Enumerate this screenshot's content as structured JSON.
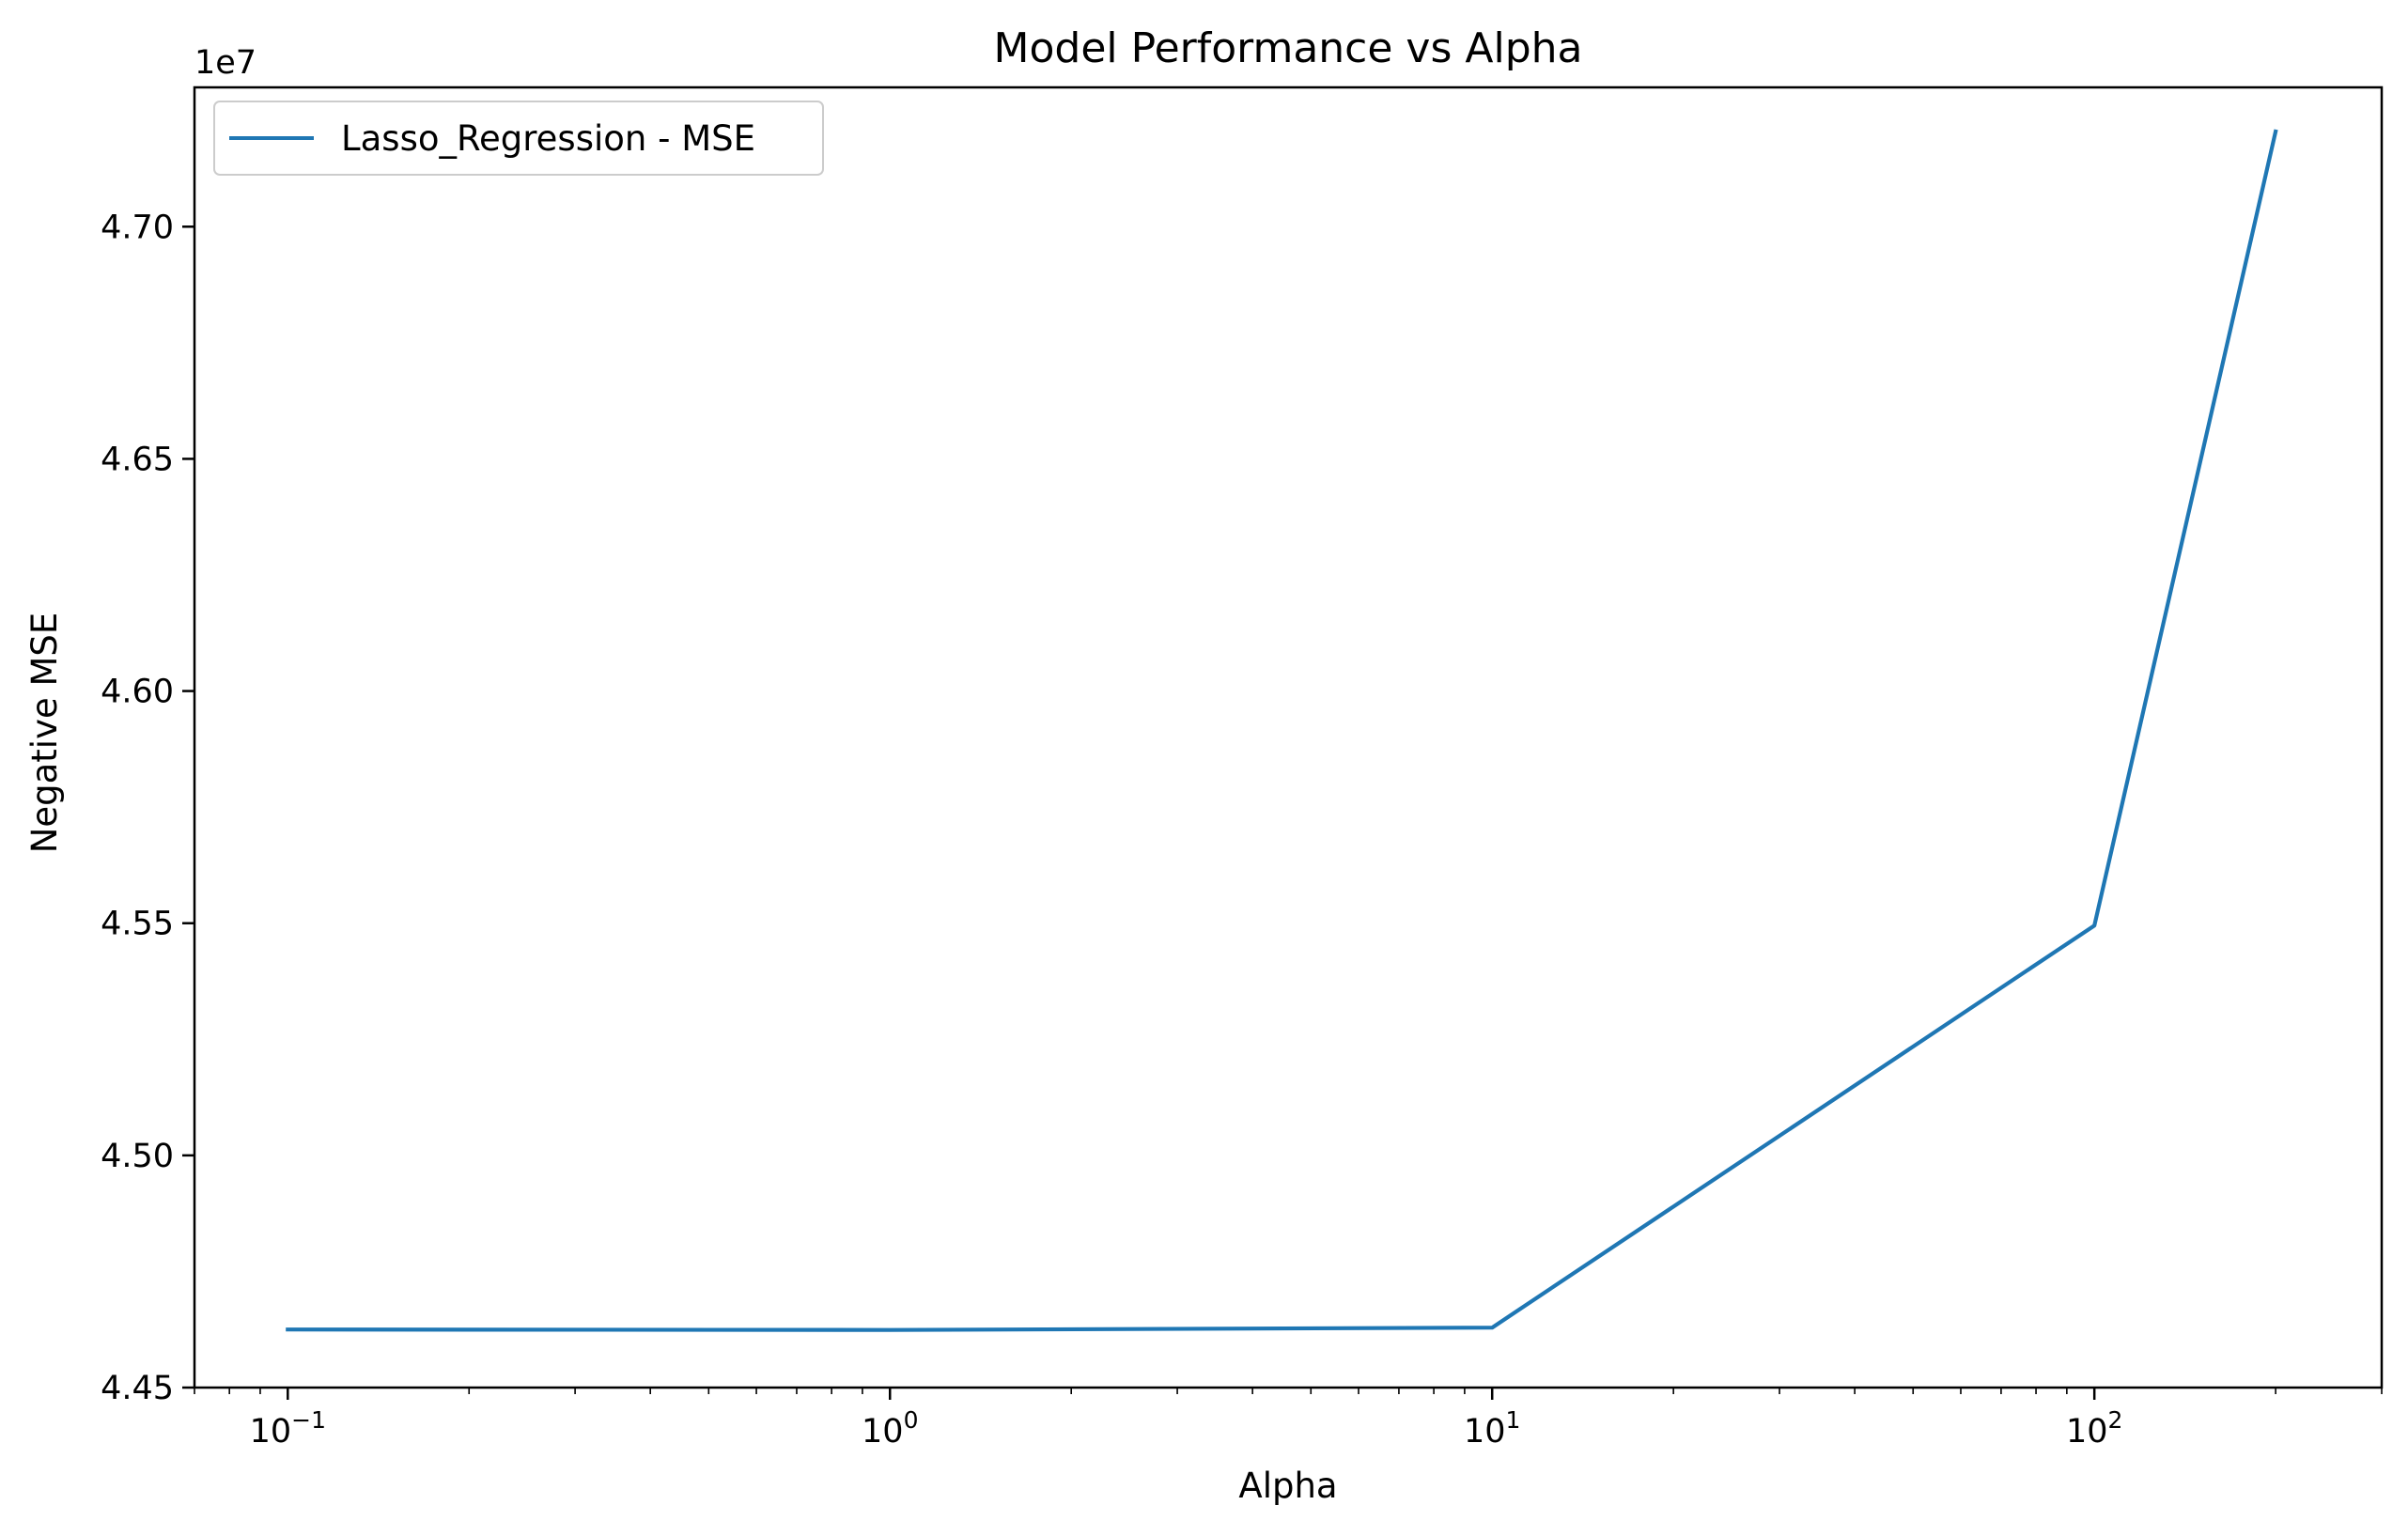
{
  "chart_data": {
    "type": "line",
    "title": "Model Performance vs Alpha",
    "xlabel": "Alpha",
    "ylabel": "Negative MSE",
    "xscale": "log",
    "xlim": [
      0.07,
      300
    ],
    "ylim": [
      44500000,
      47300000
    ],
    "y_offset_label": "1e7",
    "x_ticks": [
      {
        "value": 0.1,
        "base": "10",
        "exp": "−1"
      },
      {
        "value": 1,
        "base": "10",
        "exp": "0"
      },
      {
        "value": 10,
        "base": "10",
        "exp": "1"
      },
      {
        "value": 100,
        "base": "10",
        "exp": "2"
      }
    ],
    "y_ticks": [
      {
        "value": 44500000,
        "label": "4.45"
      },
      {
        "value": 45000000,
        "label": "4.50"
      },
      {
        "value": 45500000,
        "label": "4.55"
      },
      {
        "value": 46000000,
        "label": "4.60"
      },
      {
        "value": 46500000,
        "label": "4.65"
      },
      {
        "value": 47000000,
        "label": "4.70"
      }
    ],
    "grid": false,
    "legend": "top-left",
    "series": [
      {
        "name": "Lasso_Regression - MSE",
        "color": "#1f77b4",
        "x": [
          0.1,
          1,
          10,
          100,
          200
        ],
        "y": [
          44625000,
          44624000,
          44629000,
          45495000,
          47205000
        ]
      }
    ]
  }
}
